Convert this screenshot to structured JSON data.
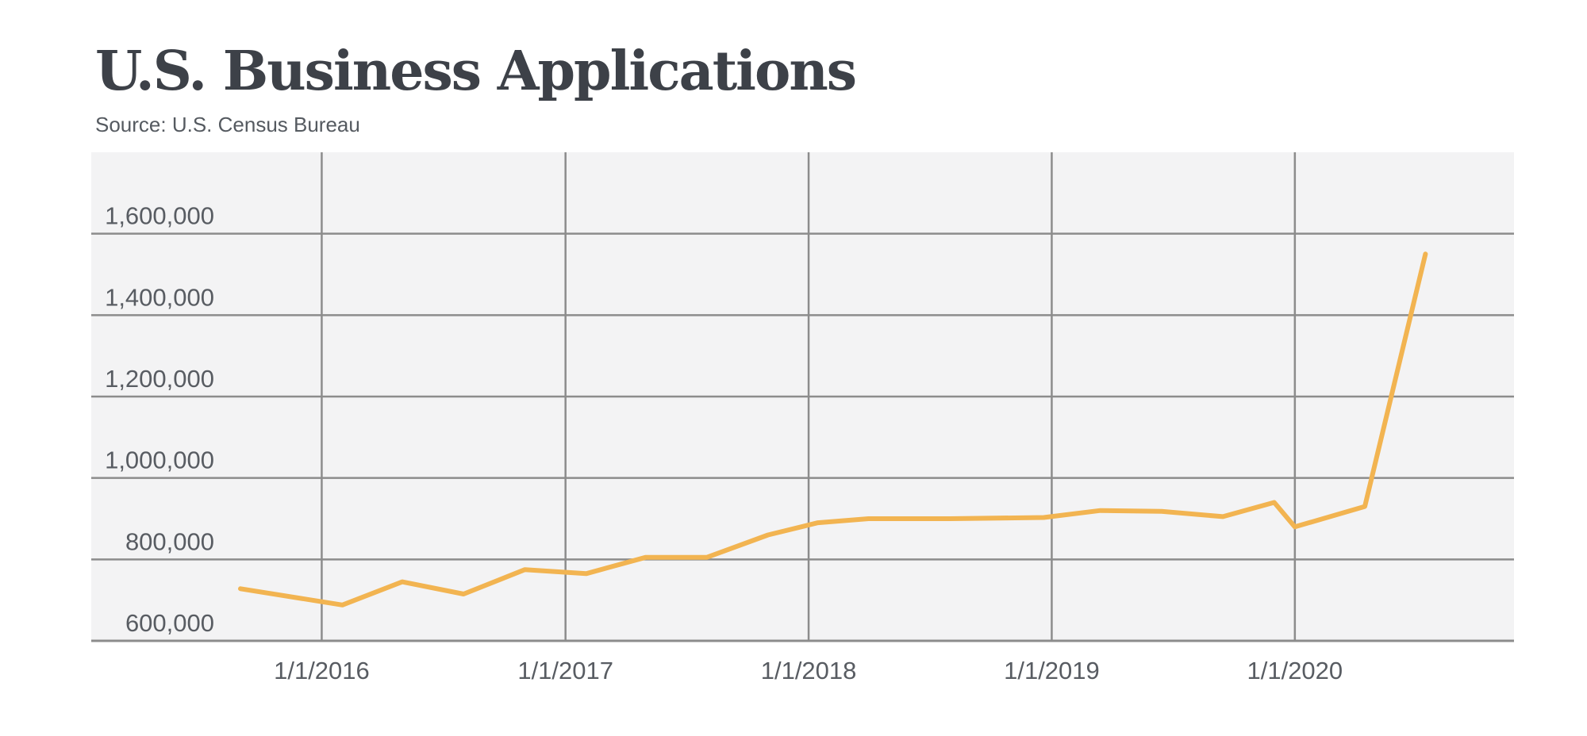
{
  "chart_data": {
    "type": "line",
    "title": "U.S. Business Applications",
    "subtitle": "Source: U.S. Census Bureau",
    "xlabel": "",
    "ylabel": "",
    "x_ticks": [
      "1/1/2016",
      "1/1/2017",
      "1/1/2018",
      "1/1/2019",
      "1/1/2020"
    ],
    "y_ticks": [
      {
        "value": 600000,
        "label": "600,000"
      },
      {
        "value": 800000,
        "label": "800,000"
      },
      {
        "value": 1000000,
        "label": "1,000,000"
      },
      {
        "value": 1200000,
        "label": "1,200,000"
      },
      {
        "value": 1400000,
        "label": "1,400,000"
      },
      {
        "value": 1600000,
        "label": "1,600,000"
      }
    ],
    "xlim": [
      "2015-01-20",
      "2020-11-25"
    ],
    "ylim": [
      600000,
      1800000
    ],
    "grid": true,
    "line_color": "#f2b451",
    "plot_background": "#f3f3f4",
    "grid_color": "#8c8c8c",
    "series": [
      {
        "x": [
          "2015-09-01",
          "2016-02-01",
          "2016-05-01",
          "2016-08-01",
          "2016-11-01",
          "2017-02-01",
          "2017-05-01",
          "2017-08-01",
          "2017-11-01",
          "2018-01-15",
          "2018-04-01",
          "2018-08-01",
          "2018-12-20",
          "2019-03-15",
          "2019-06-15",
          "2019-09-15",
          "2019-12-01",
          "2020-01-01",
          "2020-04-15",
          "2020-07-15"
        ],
        "y": [
          728000,
          688000,
          745000,
          715000,
          775000,
          765000,
          805000,
          805000,
          860000,
          890000,
          900000,
          900000,
          903000,
          920000,
          918000,
          905000,
          940000,
          880000,
          930000,
          1550000
        ]
      }
    ]
  }
}
